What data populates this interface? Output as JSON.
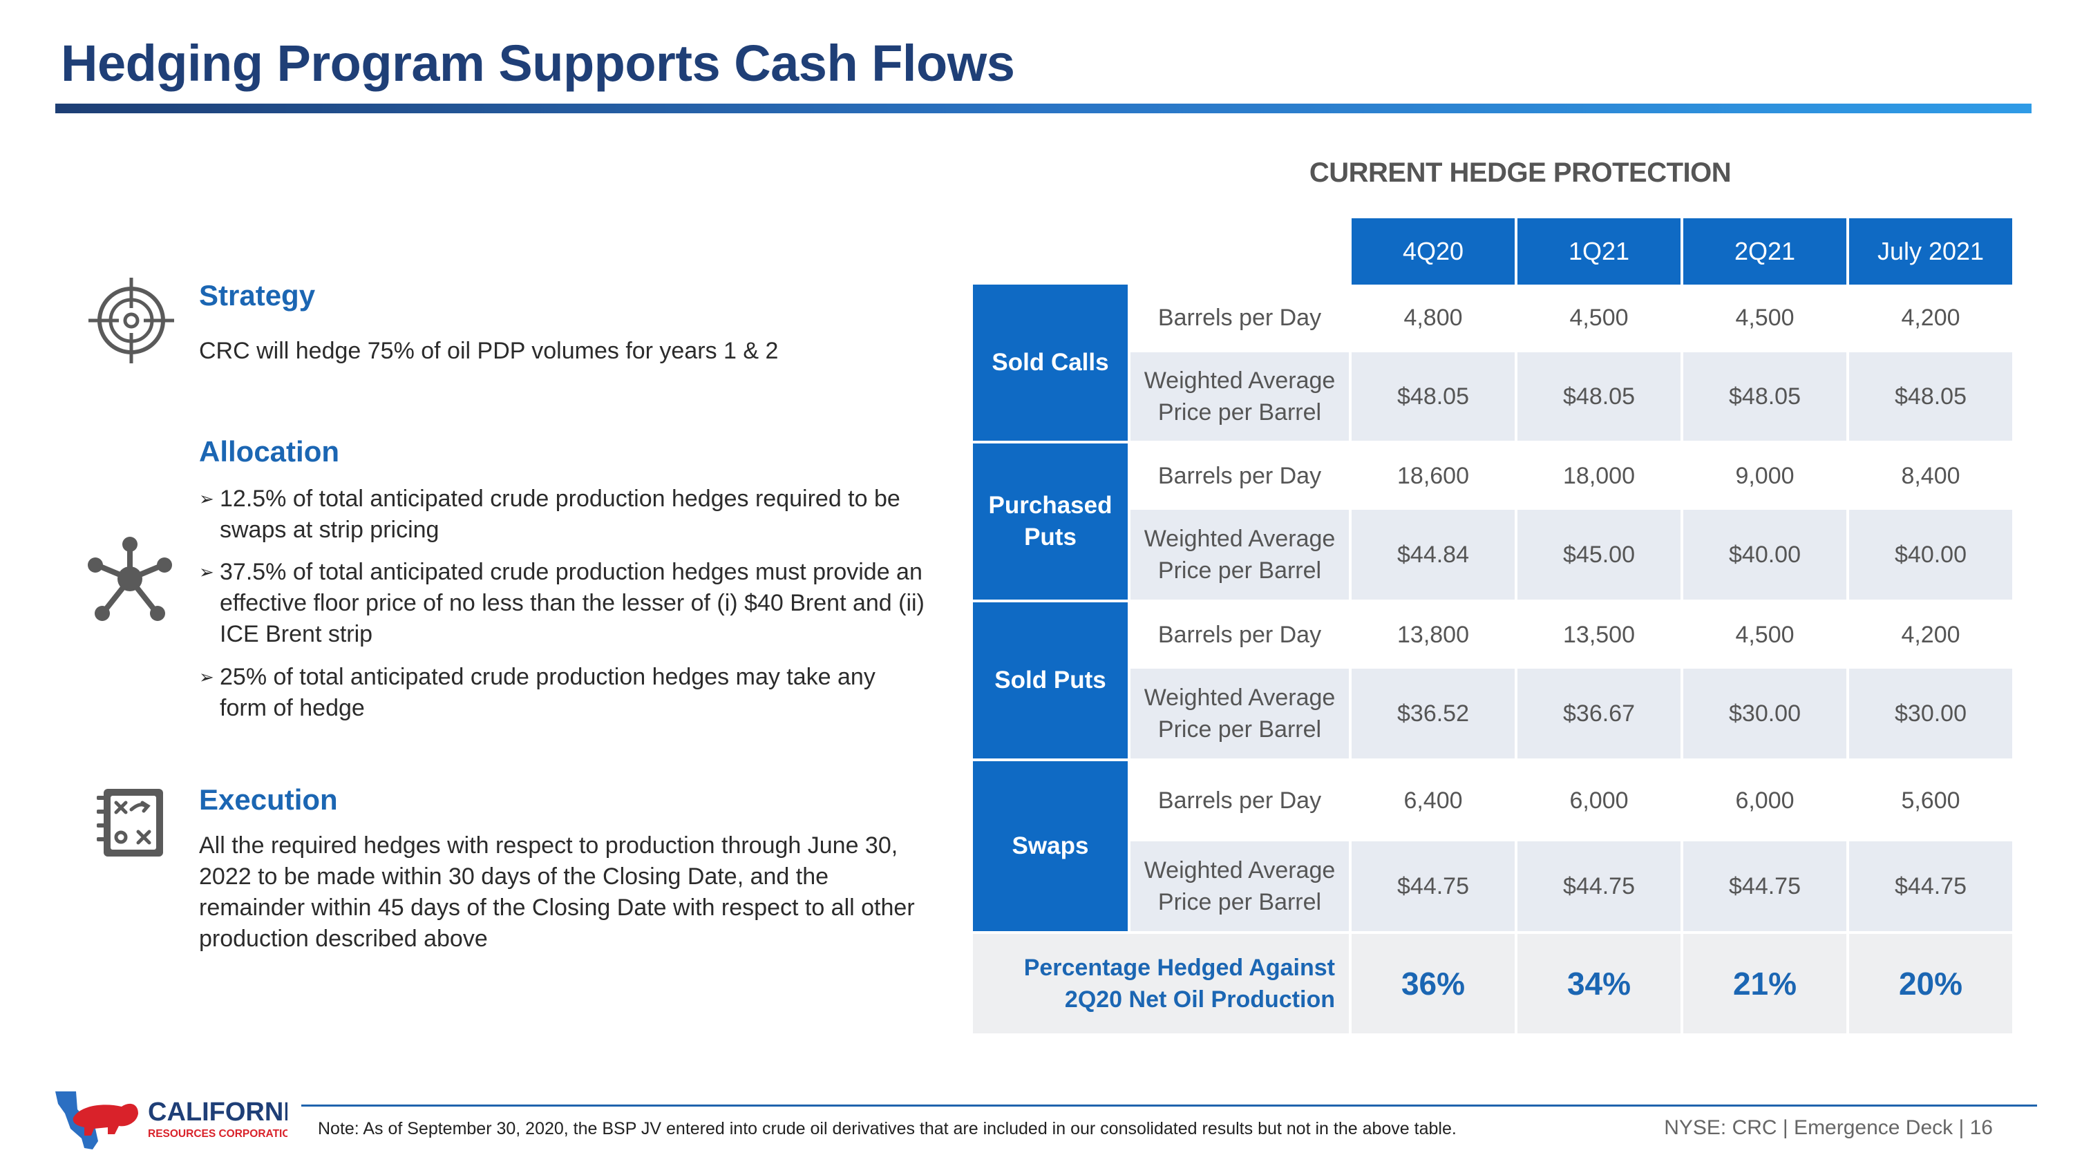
{
  "title": "Hedging Program Supports Cash Flows",
  "sections": {
    "strategy": {
      "heading": "Strategy",
      "text": "CRC will hedge 75% of oil PDP volumes for years 1 & 2",
      "icon": "target-icon"
    },
    "allocation": {
      "heading": "Allocation",
      "icon": "network-icon",
      "bullets": [
        "12.5% of total anticipated crude production hedges required to be swaps at strip pricing",
        "37.5% of total anticipated crude production hedges must provide an effective floor price of no less than the lesser of (i) $40 Brent and (ii) ICE Brent strip",
        "25% of total anticipated crude production hedges may take any form of hedge"
      ]
    },
    "execution": {
      "heading": "Execution",
      "icon": "strategy-board-icon",
      "text": "All the required hedges with respect to production through June 30, 2022 to be made within 30 days of the Closing Date, and the remainder within 45 days of the Closing Date with respect to all other production described above"
    }
  },
  "table": {
    "title": "CURRENT HEDGE PROTECTION",
    "columns": [
      "4Q20",
      "1Q21",
      "2Q21",
      "July 2021"
    ],
    "groups": [
      {
        "name": "Sold Calls",
        "rows": [
          {
            "label": "Barrels per Day",
            "values": [
              "4,800",
              "4,500",
              "4,500",
              "4,200"
            ]
          },
          {
            "label": "Weighted Average Price per Barrel",
            "values": [
              "$48.05",
              "$48.05",
              "$48.05",
              "$48.05"
            ]
          }
        ]
      },
      {
        "name": "Purchased Puts",
        "rows": [
          {
            "label": "Barrels per Day",
            "values": [
              "18,600",
              "18,000",
              "9,000",
              "8,400"
            ]
          },
          {
            "label": "Weighted Average Price per Barrel",
            "values": [
              "$44.84",
              "$45.00",
              "$40.00",
              "$40.00"
            ]
          }
        ]
      },
      {
        "name": "Sold Puts",
        "rows": [
          {
            "label": "Barrels per Day",
            "values": [
              "13,800",
              "13,500",
              "4,500",
              "4,200"
            ]
          },
          {
            "label": "Weighted Average Price per Barrel",
            "values": [
              "$36.52",
              "$36.67",
              "$30.00",
              "$30.00"
            ]
          }
        ]
      },
      {
        "name": "Swaps",
        "rows": [
          {
            "label": "Barrels per Day",
            "values": [
              "6,400",
              "6,000",
              "6,000",
              "5,600"
            ]
          },
          {
            "label": "Weighted Average Price per Barrel",
            "values": [
              "$44.75",
              "$44.75",
              "$44.75",
              "$44.75"
            ]
          }
        ]
      }
    ],
    "percentage_row": {
      "label": "Percentage Hedged Against 2Q20 Net Oil Production",
      "values": [
        "36%",
        "34%",
        "21%",
        "20%"
      ]
    }
  },
  "footer": {
    "note": "Note: As of September 30, 2020, the BSP JV entered into crude oil derivatives that are included in our consolidated results but not in the above table.",
    "page_ref": "NYSE: CRC | Emergence Deck | 16",
    "logo_line1": "CALIFORNIA",
    "logo_line2": "RESOURCES CORPORATION"
  },
  "colors": {
    "title": "#1f3f77",
    "accent": "#1b66b3",
    "table_header": "#0f6ac4",
    "logo_red": "#d9222a"
  }
}
